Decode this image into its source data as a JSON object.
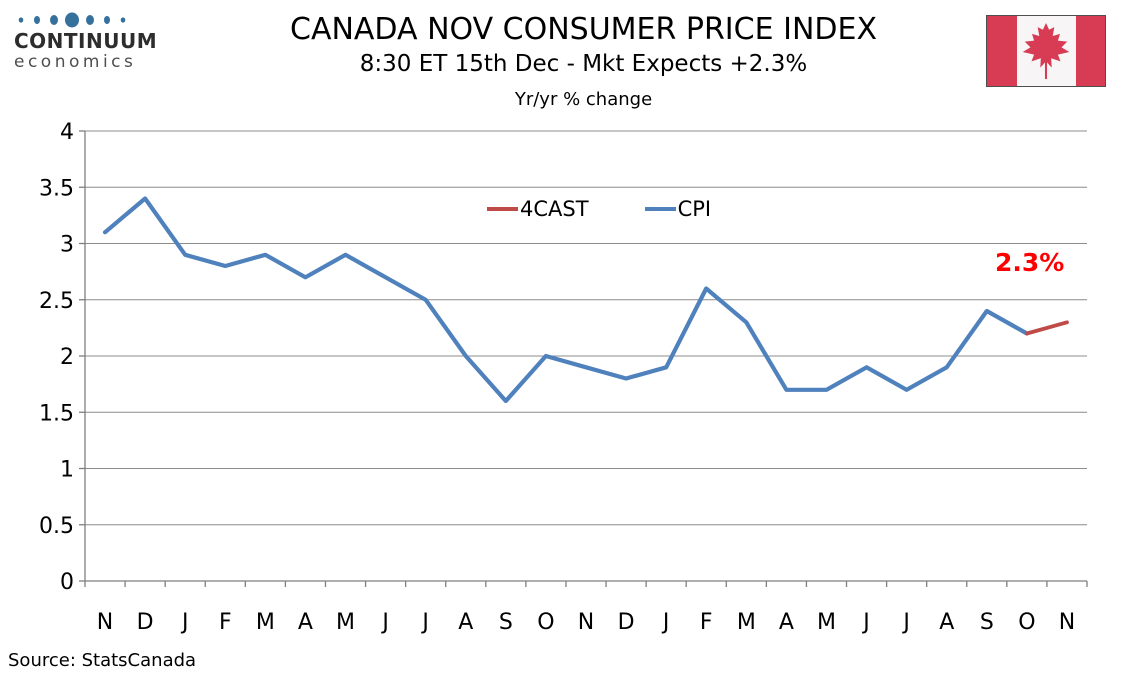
{
  "header": {
    "title": "CANADA NOV CONSUMER PRICE INDEX",
    "subtitle": "8:30 ET 15th Dec - Mkt Expects +2.3%",
    "axis_note": "Yr/yr % change"
  },
  "logo": {
    "brand": "CONTINUUM",
    "sub": "economics",
    "dot_color": "#36719E"
  },
  "flag": {
    "red": "#D83C55",
    "white": "#F7F5F6"
  },
  "legend": {
    "items": [
      {
        "label": "4CAST"
      },
      {
        "label": "CPI"
      }
    ]
  },
  "annotation": {
    "text": "2.3%",
    "color": "#FF0000"
  },
  "source": "Source: StatsCanada",
  "chart_data": {
    "type": "line",
    "title": "CANADA NOV CONSUMER PRICE INDEX",
    "subtitle": "8:30 ET 15th Dec - Mkt Expects +2.3%",
    "ylabel": "Yr/yr % change",
    "categories": [
      "N",
      "D",
      "J",
      "F",
      "M",
      "A",
      "M",
      "J",
      "J",
      "A",
      "S",
      "O",
      "N",
      "D",
      "J",
      "F",
      "M",
      "A",
      "M",
      "J",
      "J",
      "A",
      "S",
      "O",
      "N"
    ],
    "series": [
      {
        "name": "4CAST",
        "color": "#BE4B48",
        "values": [
          null,
          null,
          null,
          null,
          null,
          null,
          null,
          null,
          null,
          null,
          null,
          null,
          null,
          null,
          null,
          null,
          null,
          null,
          null,
          null,
          null,
          null,
          null,
          2.2,
          2.3
        ]
      },
      {
        "name": "CPI",
        "color": "#4F81BD",
        "values": [
          3.1,
          3.4,
          2.9,
          2.8,
          2.9,
          2.7,
          2.9,
          2.7,
          2.5,
          2.0,
          1.6,
          2.0,
          1.9,
          1.8,
          1.9,
          2.6,
          2.3,
          1.7,
          1.7,
          1.9,
          1.7,
          1.9,
          2.4,
          2.2,
          null
        ]
      }
    ],
    "ylim": [
      0,
      4
    ],
    "yticks": [
      0,
      0.5,
      1,
      1.5,
      2,
      2.5,
      3,
      3.5,
      4
    ],
    "grid": true,
    "legend_position": "top-center",
    "colors": {
      "grid": "#8C8C8C",
      "axis": "#7F7F7F"
    }
  }
}
